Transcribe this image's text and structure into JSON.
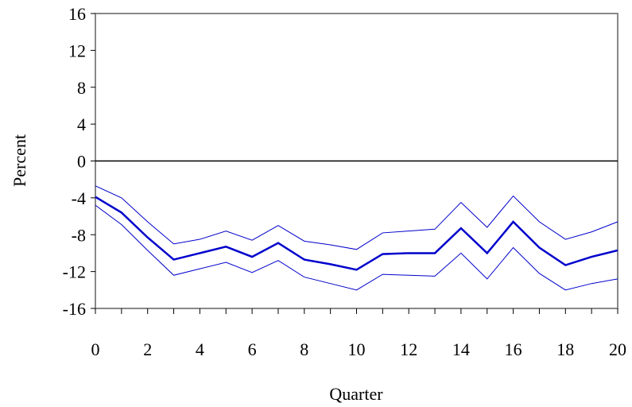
{
  "chart_data": {
    "type": "line",
    "title": "",
    "xlabel": "Quarter",
    "ylabel": "Percent",
    "xlim": [
      0,
      20
    ],
    "ylim": [
      -16,
      16
    ],
    "x_ticks": [
      0,
      2,
      4,
      6,
      8,
      10,
      12,
      14,
      16,
      18,
      20
    ],
    "y_ticks": [
      16,
      12,
      8,
      4,
      0,
      -4,
      -8,
      -12,
      -16
    ],
    "x": [
      0,
      1,
      2,
      3,
      4,
      5,
      6,
      7,
      8,
      9,
      10,
      11,
      12,
      13,
      14,
      15,
      16,
      17,
      18,
      19,
      20
    ],
    "series": [
      {
        "values": [
          -3.9,
          -5.6,
          -8.3,
          -10.7,
          -10.0,
          -9.3,
          -10.4,
          -8.9,
          -10.7,
          -11.2,
          -11.8,
          -10.1,
          -10.0,
          -10.0,
          -7.3,
          -10.0,
          -6.6,
          -9.4,
          -11.3,
          -10.4,
          -9.7
        ],
        "color": "#0000cc",
        "width": 2.5
      },
      {
        "values": [
          -2.7,
          -4.0,
          -6.6,
          -9.0,
          -8.5,
          -7.6,
          -8.6,
          -7.0,
          -8.7,
          -9.1,
          -9.6,
          -7.8,
          -7.6,
          -7.4,
          -4.5,
          -7.2,
          -3.8,
          -6.6,
          -8.5,
          -7.7,
          -6.6
        ],
        "color": "#0000cc",
        "width": 1
      },
      {
        "values": [
          -4.8,
          -6.9,
          -9.7,
          -12.4,
          -11.7,
          -11.0,
          -12.1,
          -10.8,
          -12.6,
          -13.3,
          -14.0,
          -12.3,
          -12.4,
          -12.5,
          -10.0,
          -12.8,
          -9.4,
          -12.2,
          -14.0,
          -13.3,
          -12.8
        ],
        "color": "#0000cc",
        "width": 1
      }
    ],
    "reference_line": 0,
    "grid": false,
    "legend": "none"
  }
}
